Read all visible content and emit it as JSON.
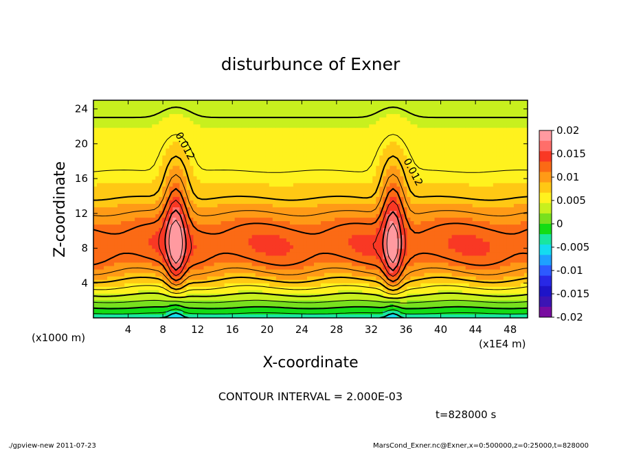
{
  "chart_data": {
    "type": "heatmap",
    "title": "disturbunce of Exner",
    "xlabel": "X-coordinate",
    "ylabel": "Z-coordinate",
    "x_unit_label": "(x1E4 m)",
    "y_unit_label": "(x1000 m)",
    "xlim": [
      0,
      50
    ],
    "ylim": [
      0,
      25
    ],
    "x_ticks": [
      4,
      8,
      12,
      16,
      20,
      24,
      28,
      32,
      36,
      40,
      44,
      48
    ],
    "y_ticks": [
      4,
      8,
      12,
      16,
      20,
      24
    ],
    "contour_interval_text": "CONTOUR INTERVAL = 2.000E-03",
    "contour_labels": [
      "0.012",
      "0.012"
    ],
    "peaks_x": [
      9.5,
      34.5
    ],
    "colorbar": {
      "min": -0.02,
      "max": 0.02,
      "tick_labels": [
        "0.02",
        "0.015",
        "0.01",
        "0.005",
        "0",
        "-0.005",
        "-0.01",
        "-0.015",
        "-0.02"
      ],
      "colors": [
        "#ff9aa0",
        "#ff6e6a",
        "#f93824",
        "#fb6a15",
        "#ff9a16",
        "#ffc814",
        "#fff21e",
        "#c8f01e",
        "#78e01e",
        "#14dc14",
        "#19e6a0",
        "#14dcf0",
        "#1ea0ff",
        "#2d5aff",
        "#2828e6",
        "#1e14c8",
        "#3c14b4",
        "#780ca0"
      ]
    }
  },
  "time_label": "t=828000 s",
  "footer_left": "./gpview-new  2011-07-23",
  "footer_right": "MarsCond_Exner.nc@Exner,x=0:500000,z=0:25000,t=828000"
}
